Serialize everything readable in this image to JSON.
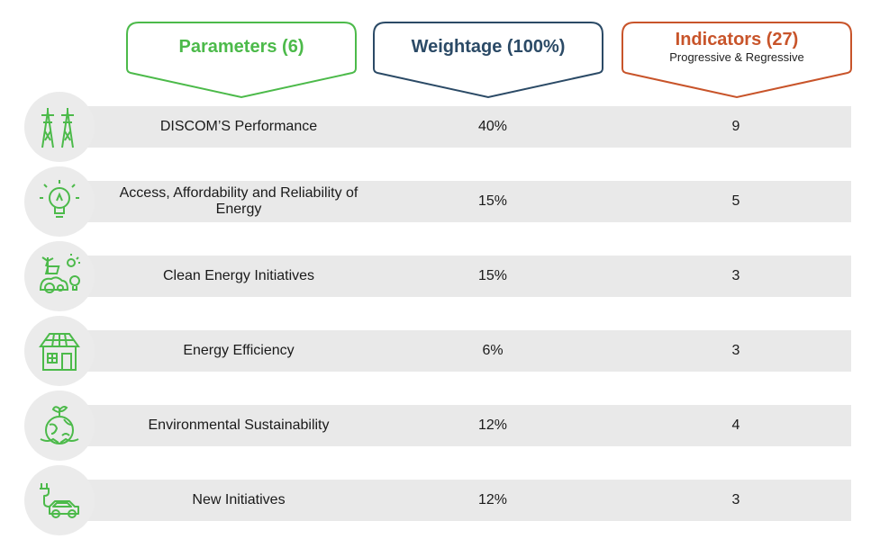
{
  "headers": {
    "parameters": {
      "title": "Parameters (6)"
    },
    "weightage": {
      "title": "Weightage (100%)"
    },
    "indicators": {
      "title": "Indicators (27)",
      "subtitle": "Progressive & Regressive"
    }
  },
  "colors": {
    "green": "#4cba4a",
    "navy": "#2b4a66",
    "orange": "#c8542a",
    "row_bg": "#e9e9e9"
  },
  "rows": [
    {
      "icon": "transmission-tower-icon",
      "name": "DISCOM’S Performance",
      "weight": "40%",
      "indicators": "9"
    },
    {
      "icon": "lightbulb-icon",
      "name": "Access, Affordability and Reliability of Energy",
      "weight": "15%",
      "indicators": "5"
    },
    {
      "icon": "clean-energy-icon",
      "name": "Clean Energy Initiatives",
      "weight": "15%",
      "indicators": "3"
    },
    {
      "icon": "solar-house-icon",
      "name": "Energy Efficiency",
      "weight": "6%",
      "indicators": "3"
    },
    {
      "icon": "globe-hands-icon",
      "name": "Environmental Sustainability",
      "weight": "12%",
      "indicators": "4"
    },
    {
      "icon": "electric-car-icon",
      "name": "New Initiatives",
      "weight": "12%",
      "indicators": "3"
    }
  ]
}
